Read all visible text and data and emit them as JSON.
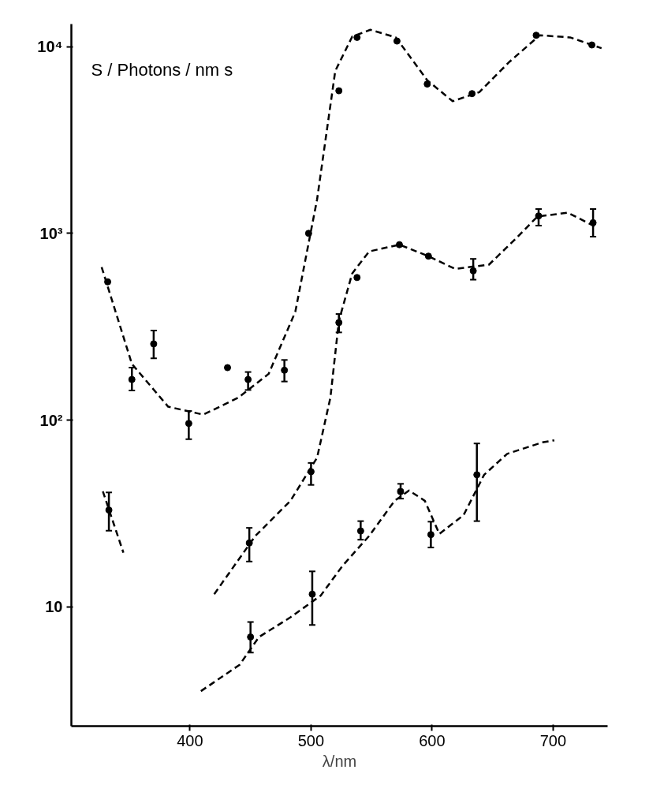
{
  "chart_data": {
    "type": "scatter",
    "xlabel": "λ/nm",
    "ylabel": "S / Photons / nm s",
    "log": "y",
    "xlim": [
      302,
      745
    ],
    "ylim": [
      2.3,
      13200
    ],
    "xticks": [
      400,
      500,
      600,
      700
    ],
    "yticks": [
      {
        "value": 10,
        "label": "10"
      },
      {
        "value": 100,
        "label": "10²"
      },
      {
        "value": 1000,
        "label": "10³"
      },
      {
        "value": 10000,
        "label": "10⁴"
      }
    ],
    "series": [
      {
        "color": "#000000",
        "marker": "circle",
        "x": [
          332,
          352,
          370,
          399,
          431,
          448,
          478,
          498,
          523,
          538,
          571,
          596,
          633,
          686,
          732
        ],
        "values": [
          550,
          165,
          256,
          96,
          191,
          165,
          185,
          1000,
          5800,
          11200,
          10700,
          6300,
          5600,
          11500,
          10200
        ],
        "errors": [
          null,
          [
            144,
            191
          ],
          [
            214,
            302
          ],
          [
            79,
            112
          ],
          null,
          [
            145,
            181
          ],
          [
            161,
            210
          ],
          null,
          null,
          null,
          null,
          null,
          null,
          null,
          null
        ]
      },
      {
        "color": "#000000",
        "marker": "circle",
        "x": [
          449,
          500,
          523,
          538,
          573,
          597,
          634,
          688,
          733
        ],
        "values": [
          22,
          53,
          333,
          580,
          870,
          755,
          630,
          1240,
          1140
        ],
        "errors": [
          [
            17.5,
            26.5
          ],
          [
            45,
            59
          ],
          [
            295,
            370
          ],
          null,
          null,
          null,
          [
            565,
            730
          ],
          [
            1100,
            1350
          ],
          [
            960,
            1350
          ]
        ]
      },
      {
        "color": "#000000",
        "marker": "circle",
        "x": [
          450,
          501,
          541,
          574,
          599,
          637
        ],
        "values": [
          6.9,
          11.7,
          25.5,
          41.5,
          24.4,
          51
        ],
        "errors": [
          [
            5.7,
            8.3
          ],
          [
            8.0,
            15.5
          ],
          [
            22.9,
            28.8
          ],
          [
            38,
            45.6
          ],
          [
            20.8,
            28.6
          ],
          [
            28.8,
            75
          ]
        ]
      },
      {
        "color": "#000000",
        "marker": "circle",
        "x": [
          333
        ],
        "values": [
          33
        ],
        "errors": [
          [
            25.6,
            41
          ]
        ]
      },
      {
        "type": "line",
        "color": "#000000",
        "line_style": "dashed",
        "x": [
          327,
          352,
          382,
          411,
          440,
          465,
          487,
          505,
          520,
          534,
          549,
          570,
          596,
          617,
          639,
          664,
          689,
          714,
          740
        ],
        "values": [
          660,
          200,
          118,
          107,
          132,
          177,
          380,
          1520,
          7400,
          11300,
          12300,
          11200,
          6600,
          5100,
          5700,
          8300,
          11500,
          11200,
          9800
        ]
      },
      {
        "type": "line",
        "color": "#000000",
        "line_style": "dashed",
        "x": [
          420,
          454,
          483,
          505,
          516,
          523,
          534,
          548,
          573,
          597,
          619,
          647,
          669,
          687,
          712,
          737
        ],
        "values": [
          11.7,
          24,
          37,
          63,
          132,
          340,
          610,
          800,
          870,
          755,
          645,
          680,
          935,
          1230,
          1290,
          1070
        ]
      },
      {
        "type": "line",
        "color": "#000000",
        "line_style": "dashed",
        "x": [
          409,
          441,
          457,
          483,
          508,
          526,
          548,
          569,
          581,
          594,
          606,
          626,
          643,
          662,
          691,
          701
        ],
        "values": [
          3.54,
          4.9,
          6.9,
          8.8,
          11.5,
          16.6,
          24,
          37,
          42,
          37,
          24.6,
          31,
          51,
          66,
          76,
          78
        ]
      },
      {
        "type": "line",
        "color": "#000000",
        "line_style": "dashed",
        "x": [
          328,
          345
        ],
        "values": [
          41.6,
          19.5
        ]
      }
    ]
  }
}
